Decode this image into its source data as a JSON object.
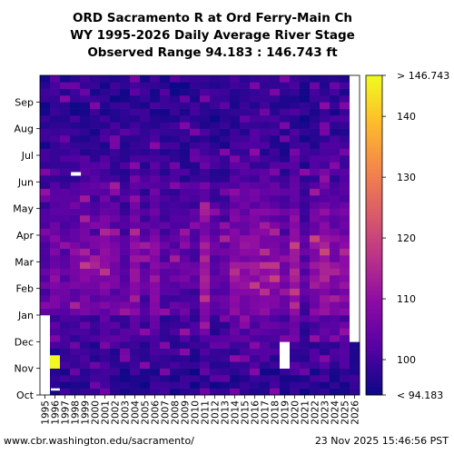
{
  "chart_data": {
    "type": "heatmap",
    "title": [
      "ORD Sacramento R at Ord Ferry-Main Ch",
      "WY 1995-2026 Daily Average River Stage",
      "Observed Range 94.183 : 146.743 ft"
    ],
    "x_tick_labels": [
      "1995",
      "1996",
      "1997",
      "1998",
      "1999",
      "2000",
      "2001",
      "2002",
      "2003",
      "2004",
      "2005",
      "2006",
      "2007",
      "2008",
      "2009",
      "2010",
      "2011",
      "2012",
      "2013",
      "2014",
      "2015",
      "2016",
      "2017",
      "2018",
      "2019",
      "2020",
      "2021",
      "2022",
      "2023",
      "2024",
      "2025",
      "2026"
    ],
    "y_tick_labels": [
      "Oct",
      "Nov",
      "Dec",
      "Jan",
      "Feb",
      "Mar",
      "Apr",
      "May",
      "Jun",
      "Jul",
      "Aug",
      "Sep"
    ],
    "colorbar": {
      "min": 94.183,
      "max": 146.743,
      "tick_values": [
        100,
        110,
        120,
        130,
        140
      ],
      "tick_labels": [
        "100",
        "110",
        "120",
        "130",
        "140"
      ],
      "min_label": "< 94.183",
      "max_label": "> 146.743",
      "colormap": "plasma"
    },
    "missing_data": [
      {
        "year": "1995",
        "months": "Oct-Dec"
      },
      {
        "year": "2019",
        "months": "Nov"
      },
      {
        "year": "2026",
        "months": "Dec-Sep"
      }
    ],
    "high_events": [
      {
        "year": "1996",
        "month": "Nov",
        "value": 146.7
      },
      {
        "year": "1997",
        "month": "Jul",
        "value": "missing"
      }
    ]
  },
  "footer": {
    "left": "www.cbr.washington.edu/sacramento/",
    "right": "23 Nov 2025 15:46:56 PST"
  }
}
